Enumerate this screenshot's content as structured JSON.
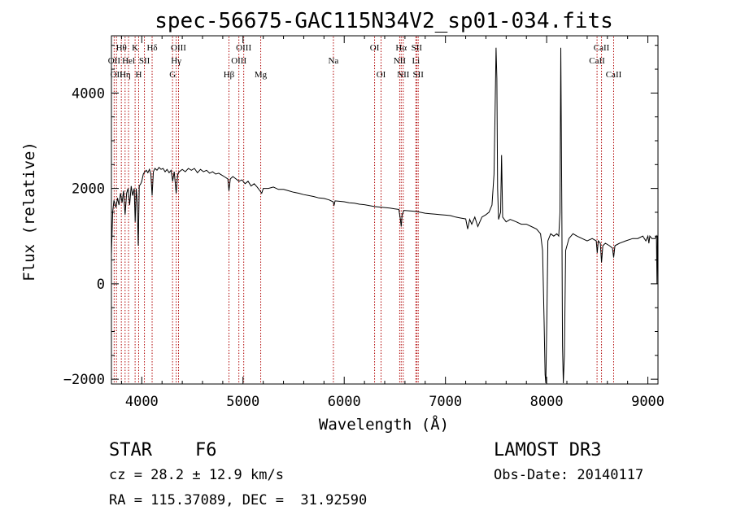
{
  "chart_data": {
    "type": "line",
    "title": "spec-56675-GAC115N34V2_sp01-034.fits",
    "xlabel": "Wavelength (Å)",
    "ylabel": "Flux (relative)",
    "xlim": [
      3700,
      9100
    ],
    "ylim": [
      -2100,
      5200
    ],
    "xticks": [
      {
        "value": 4000,
        "label": "4000"
      },
      {
        "value": 5000,
        "label": "5000"
      },
      {
        "value": 6000,
        "label": "6000"
      },
      {
        "value": 7000,
        "label": "7000"
      },
      {
        "value": 8000,
        "label": "8000"
      },
      {
        "value": 9000,
        "label": "9000"
      }
    ],
    "yticks": [
      {
        "value": -2000,
        "label": "−2000"
      },
      {
        "value": 0,
        "label": "0"
      },
      {
        "value": 2000,
        "label": "2000"
      },
      {
        "value": 4000,
        "label": "4000"
      }
    ],
    "series": [
      {
        "name": "flux",
        "points": [
          [
            3700,
            600
          ],
          [
            3712,
            1500
          ],
          [
            3725,
            1750
          ],
          [
            3745,
            1600
          ],
          [
            3760,
            1800
          ],
          [
            3775,
            1650
          ],
          [
            3790,
            1900
          ],
          [
            3805,
            1700
          ],
          [
            3820,
            1950
          ],
          [
            3835,
            1450
          ],
          [
            3850,
            1900
          ],
          [
            3865,
            2000
          ],
          [
            3880,
            1650
          ],
          [
            3895,
            2050
          ],
          [
            3910,
            1850
          ],
          [
            3925,
            2000
          ],
          [
            3935,
            1300
          ],
          [
            3945,
            2000
          ],
          [
            3955,
            1700
          ],
          [
            3965,
            800
          ],
          [
            3975,
            2050
          ],
          [
            3990,
            2100
          ],
          [
            4000,
            2150
          ],
          [
            4015,
            2300
          ],
          [
            4030,
            2350
          ],
          [
            4045,
            2380
          ],
          [
            4060,
            2330
          ],
          [
            4075,
            2400
          ],
          [
            4090,
            2300
          ],
          [
            4102,
            1850
          ],
          [
            4115,
            2350
          ],
          [
            4130,
            2420
          ],
          [
            4150,
            2380
          ],
          [
            4170,
            2440
          ],
          [
            4190,
            2400
          ],
          [
            4210,
            2420
          ],
          [
            4230,
            2350
          ],
          [
            4250,
            2400
          ],
          [
            4270,
            2330
          ],
          [
            4290,
            2380
          ],
          [
            4305,
            2150
          ],
          [
            4320,
            2350
          ],
          [
            4340,
            1900
          ],
          [
            4355,
            2300
          ],
          [
            4370,
            2350
          ],
          [
            4400,
            2400
          ],
          [
            4430,
            2350
          ],
          [
            4460,
            2420
          ],
          [
            4490,
            2380
          ],
          [
            4520,
            2420
          ],
          [
            4550,
            2330
          ],
          [
            4580,
            2400
          ],
          [
            4610,
            2350
          ],
          [
            4640,
            2380
          ],
          [
            4670,
            2320
          ],
          [
            4700,
            2350
          ],
          [
            4730,
            2300
          ],
          [
            4760,
            2320
          ],
          [
            4790,
            2280
          ],
          [
            4820,
            2240
          ],
          [
            4850,
            2200
          ],
          [
            4861,
            1950
          ],
          [
            4875,
            2200
          ],
          [
            4900,
            2250
          ],
          [
            4930,
            2200
          ],
          [
            4960,
            2150
          ],
          [
            4990,
            2180
          ],
          [
            5020,
            2100
          ],
          [
            5050,
            2150
          ],
          [
            5080,
            2050
          ],
          [
            5110,
            2100
          ],
          [
            5140,
            2030
          ],
          [
            5167,
            1950
          ],
          [
            5185,
            1900
          ],
          [
            5200,
            2000
          ],
          [
            5250,
            2000
          ],
          [
            5300,
            2030
          ],
          [
            5350,
            1980
          ],
          [
            5400,
            1980
          ],
          [
            5450,
            1950
          ],
          [
            5500,
            1920
          ],
          [
            5550,
            1900
          ],
          [
            5600,
            1870
          ],
          [
            5650,
            1850
          ],
          [
            5700,
            1830
          ],
          [
            5750,
            1800
          ],
          [
            5800,
            1790
          ],
          [
            5850,
            1760
          ],
          [
            5890,
            1720
          ],
          [
            5900,
            1650
          ],
          [
            5910,
            1740
          ],
          [
            5950,
            1730
          ],
          [
            6000,
            1720
          ],
          [
            6050,
            1700
          ],
          [
            6100,
            1690
          ],
          [
            6150,
            1670
          ],
          [
            6200,
            1660
          ],
          [
            6250,
            1640
          ],
          [
            6300,
            1620
          ],
          [
            6350,
            1610
          ],
          [
            6400,
            1600
          ],
          [
            6450,
            1590
          ],
          [
            6500,
            1570
          ],
          [
            6540,
            1560
          ],
          [
            6555,
            1350
          ],
          [
            6563,
            1200
          ],
          [
            6572,
            1450
          ],
          [
            6590,
            1540
          ],
          [
            6650,
            1530
          ],
          [
            6700,
            1520
          ],
          [
            6750,
            1500
          ],
          [
            6800,
            1480
          ],
          [
            6850,
            1470
          ],
          [
            6900,
            1460
          ],
          [
            6950,
            1450
          ],
          [
            7000,
            1440
          ],
          [
            7050,
            1430
          ],
          [
            7100,
            1400
          ],
          [
            7150,
            1380
          ],
          [
            7200,
            1360
          ],
          [
            7220,
            1150
          ],
          [
            7240,
            1350
          ],
          [
            7260,
            1250
          ],
          [
            7290,
            1400
          ],
          [
            7320,
            1200
          ],
          [
            7360,
            1400
          ],
          [
            7400,
            1450
          ],
          [
            7430,
            1500
          ],
          [
            7460,
            1650
          ],
          [
            7480,
            2300
          ],
          [
            7490,
            3500
          ],
          [
            7500,
            4950
          ],
          [
            7508,
            4300
          ],
          [
            7515,
            2000
          ],
          [
            7525,
            1350
          ],
          [
            7545,
            1500
          ],
          [
            7555,
            2700
          ],
          [
            7565,
            1400
          ],
          [
            7600,
            1300
          ],
          [
            7640,
            1350
          ],
          [
            7700,
            1300
          ],
          [
            7750,
            1250
          ],
          [
            7800,
            1250
          ],
          [
            7850,
            1200
          ],
          [
            7900,
            1150
          ],
          [
            7940,
            1050
          ],
          [
            7960,
            700
          ],
          [
            7975,
            -800
          ],
          [
            7985,
            -1900
          ],
          [
            7992,
            -2100
          ],
          [
            8002,
            -700
          ],
          [
            8012,
            900
          ],
          [
            8040,
            1050
          ],
          [
            8070,
            1000
          ],
          [
            8100,
            1050
          ],
          [
            8120,
            1000
          ],
          [
            8132,
            1500
          ],
          [
            8140,
            4950
          ],
          [
            8150,
            1500
          ],
          [
            8157,
            -1300
          ],
          [
            8165,
            -2100
          ],
          [
            8175,
            -1500
          ],
          [
            8188,
            700
          ],
          [
            8220,
            950
          ],
          [
            8260,
            1050
          ],
          [
            8300,
            1000
          ],
          [
            8350,
            950
          ],
          [
            8400,
            900
          ],
          [
            8450,
            950
          ],
          [
            8490,
            900
          ],
          [
            8500,
            650
          ],
          [
            8510,
            900
          ],
          [
            8530,
            850
          ],
          [
            8542,
            450
          ],
          [
            8555,
            800
          ],
          [
            8580,
            850
          ],
          [
            8620,
            800
          ],
          [
            8650,
            750
          ],
          [
            8662,
            550
          ],
          [
            8675,
            800
          ],
          [
            8720,
            850
          ],
          [
            8780,
            900
          ],
          [
            8850,
            950
          ],
          [
            8900,
            950
          ],
          [
            8950,
            1000
          ],
          [
            8980,
            900
          ],
          [
            9000,
            1000
          ],
          [
            9010,
            850
          ],
          [
            9020,
            1000
          ],
          [
            9040,
            950
          ],
          [
            9070,
            950
          ],
          [
            9085,
            1000
          ],
          [
            9090,
            0
          ],
          [
            9095,
            1000
          ],
          [
            9100,
            1000
          ]
        ]
      }
    ],
    "lines": [
      {
        "wave": 3727,
        "label": "OII",
        "row": 2
      },
      {
        "wave": 3750,
        "label": "OII",
        "row": 3
      },
      {
        "wave": 3798,
        "label": "Hθ",
        "row": 1
      },
      {
        "wave": 3835,
        "label": "Hη",
        "row": 3
      },
      {
        "wave": 3869,
        "label": "Hel",
        "row": 2
      },
      {
        "wave": 3934,
        "label": "K",
        "row": 1
      },
      {
        "wave": 3969,
        "label": "H",
        "row": 3
      },
      {
        "wave": 4026,
        "label": "SII",
        "row": 2
      },
      {
        "wave": 4102,
        "label": "Hδ",
        "row": 1
      },
      {
        "wave": 4304,
        "label": "G",
        "row": 3
      },
      {
        "wave": 4340,
        "label": "Hγ",
        "row": 2
      },
      {
        "wave": 4363,
        "label": "OIII",
        "row": 1
      },
      {
        "wave": 4861,
        "label": "Hβ",
        "row": 3
      },
      {
        "wave": 4959,
        "label": "OIII",
        "row": 2
      },
      {
        "wave": 5007,
        "label": "OIII",
        "row": 1
      },
      {
        "wave": 5175,
        "label": "Mg",
        "row": 3
      },
      {
        "wave": 5893,
        "label": "Na",
        "row": 2
      },
      {
        "wave": 6300,
        "label": "OI",
        "row": 1
      },
      {
        "wave": 6364,
        "label": "OI",
        "row": 3
      },
      {
        "wave": 6548,
        "label": "NII",
        "row": 2
      },
      {
        "wave": 6563,
        "label": "Hα",
        "row": 1
      },
      {
        "wave": 6583,
        "label": "NII",
        "row": 3
      },
      {
        "wave": 6708,
        "label": "Li",
        "row": 2
      },
      {
        "wave": 6716,
        "label": "SII",
        "row": 1
      },
      {
        "wave": 6731,
        "label": "SII",
        "row": 3
      },
      {
        "wave": 8498,
        "label": "CaII",
        "row": 2
      },
      {
        "wave": 8542,
        "label": "CaII",
        "row": 1
      },
      {
        "wave": 8662,
        "label": "CaII",
        "row": 3
      }
    ]
  },
  "info": {
    "object_class": "STAR",
    "subclass": "F6",
    "redshift": "cz = 28.2 ± 12.9 km/s",
    "coords": "RA = 115.37089, DEC =  31.92590",
    "survey": "LAMOST DR3",
    "obs_date": "Obs-Date: 20140117"
  },
  "colors": {
    "axis": "#000000",
    "line": "#000000",
    "marker": "#b00000",
    "background": "#ffffff"
  }
}
